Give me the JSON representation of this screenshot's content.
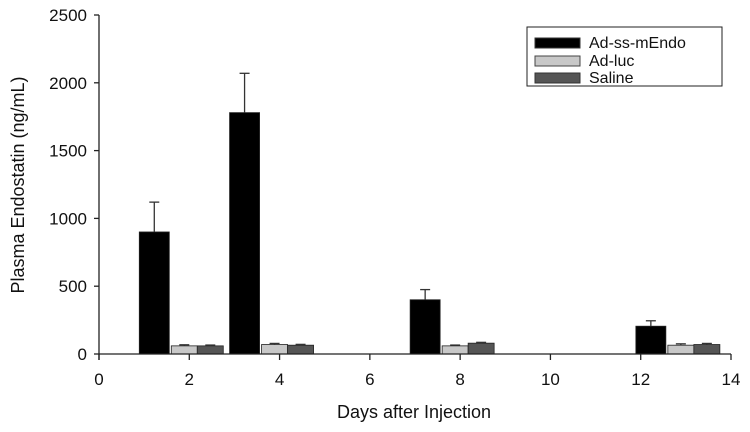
{
  "chart_data": {
    "type": "bar",
    "title": "",
    "xlabel": "Days after Injection",
    "ylabel": "Plasma Endostatin (ng/mL)",
    "xlim": [
      0,
      14
    ],
    "ylim": [
      0,
      2500
    ],
    "xticks": [
      0,
      2,
      4,
      6,
      8,
      10,
      12,
      14
    ],
    "yticks": [
      0,
      500,
      1000,
      1500,
      2000,
      2500
    ],
    "grid": false,
    "legend_position": "upper right",
    "categories": [
      "Day 2",
      "Day 4",
      "Day 8",
      "Day 13"
    ],
    "x_days": [
      2,
      4,
      8,
      13
    ],
    "series": [
      {
        "name": "Ad-ss-mEndo",
        "color": "#000000",
        "values": [
          900,
          1780,
          400,
          205
        ],
        "errors": [
          220,
          290,
          75,
          40
        ]
      },
      {
        "name": "Ad-luc",
        "color": "#c8c8c8",
        "values": [
          60,
          70,
          60,
          65
        ],
        "errors": [
          8,
          8,
          6,
          10
        ]
      },
      {
        "name": "Saline",
        "color": "#555555",
        "values": [
          60,
          65,
          80,
          70
        ],
        "errors": [
          6,
          6,
          6,
          8
        ]
      }
    ]
  },
  "axes": {
    "x_title": "Days after Injection",
    "y_title": "Plasma Endostatin (ng/mL)",
    "x_ticks": [
      "0",
      "2",
      "4",
      "6",
      "8",
      "10",
      "12",
      "14"
    ],
    "y_ticks": [
      "0",
      "500",
      "1000",
      "1500",
      "2000",
      "2500"
    ]
  },
  "legend": {
    "items": [
      {
        "label": "Ad-ss-mEndo",
        "color": "#000000"
      },
      {
        "label": "Ad-luc",
        "color": "#c8c8c8"
      },
      {
        "label": "Saline",
        "color": "#555555"
      }
    ]
  }
}
